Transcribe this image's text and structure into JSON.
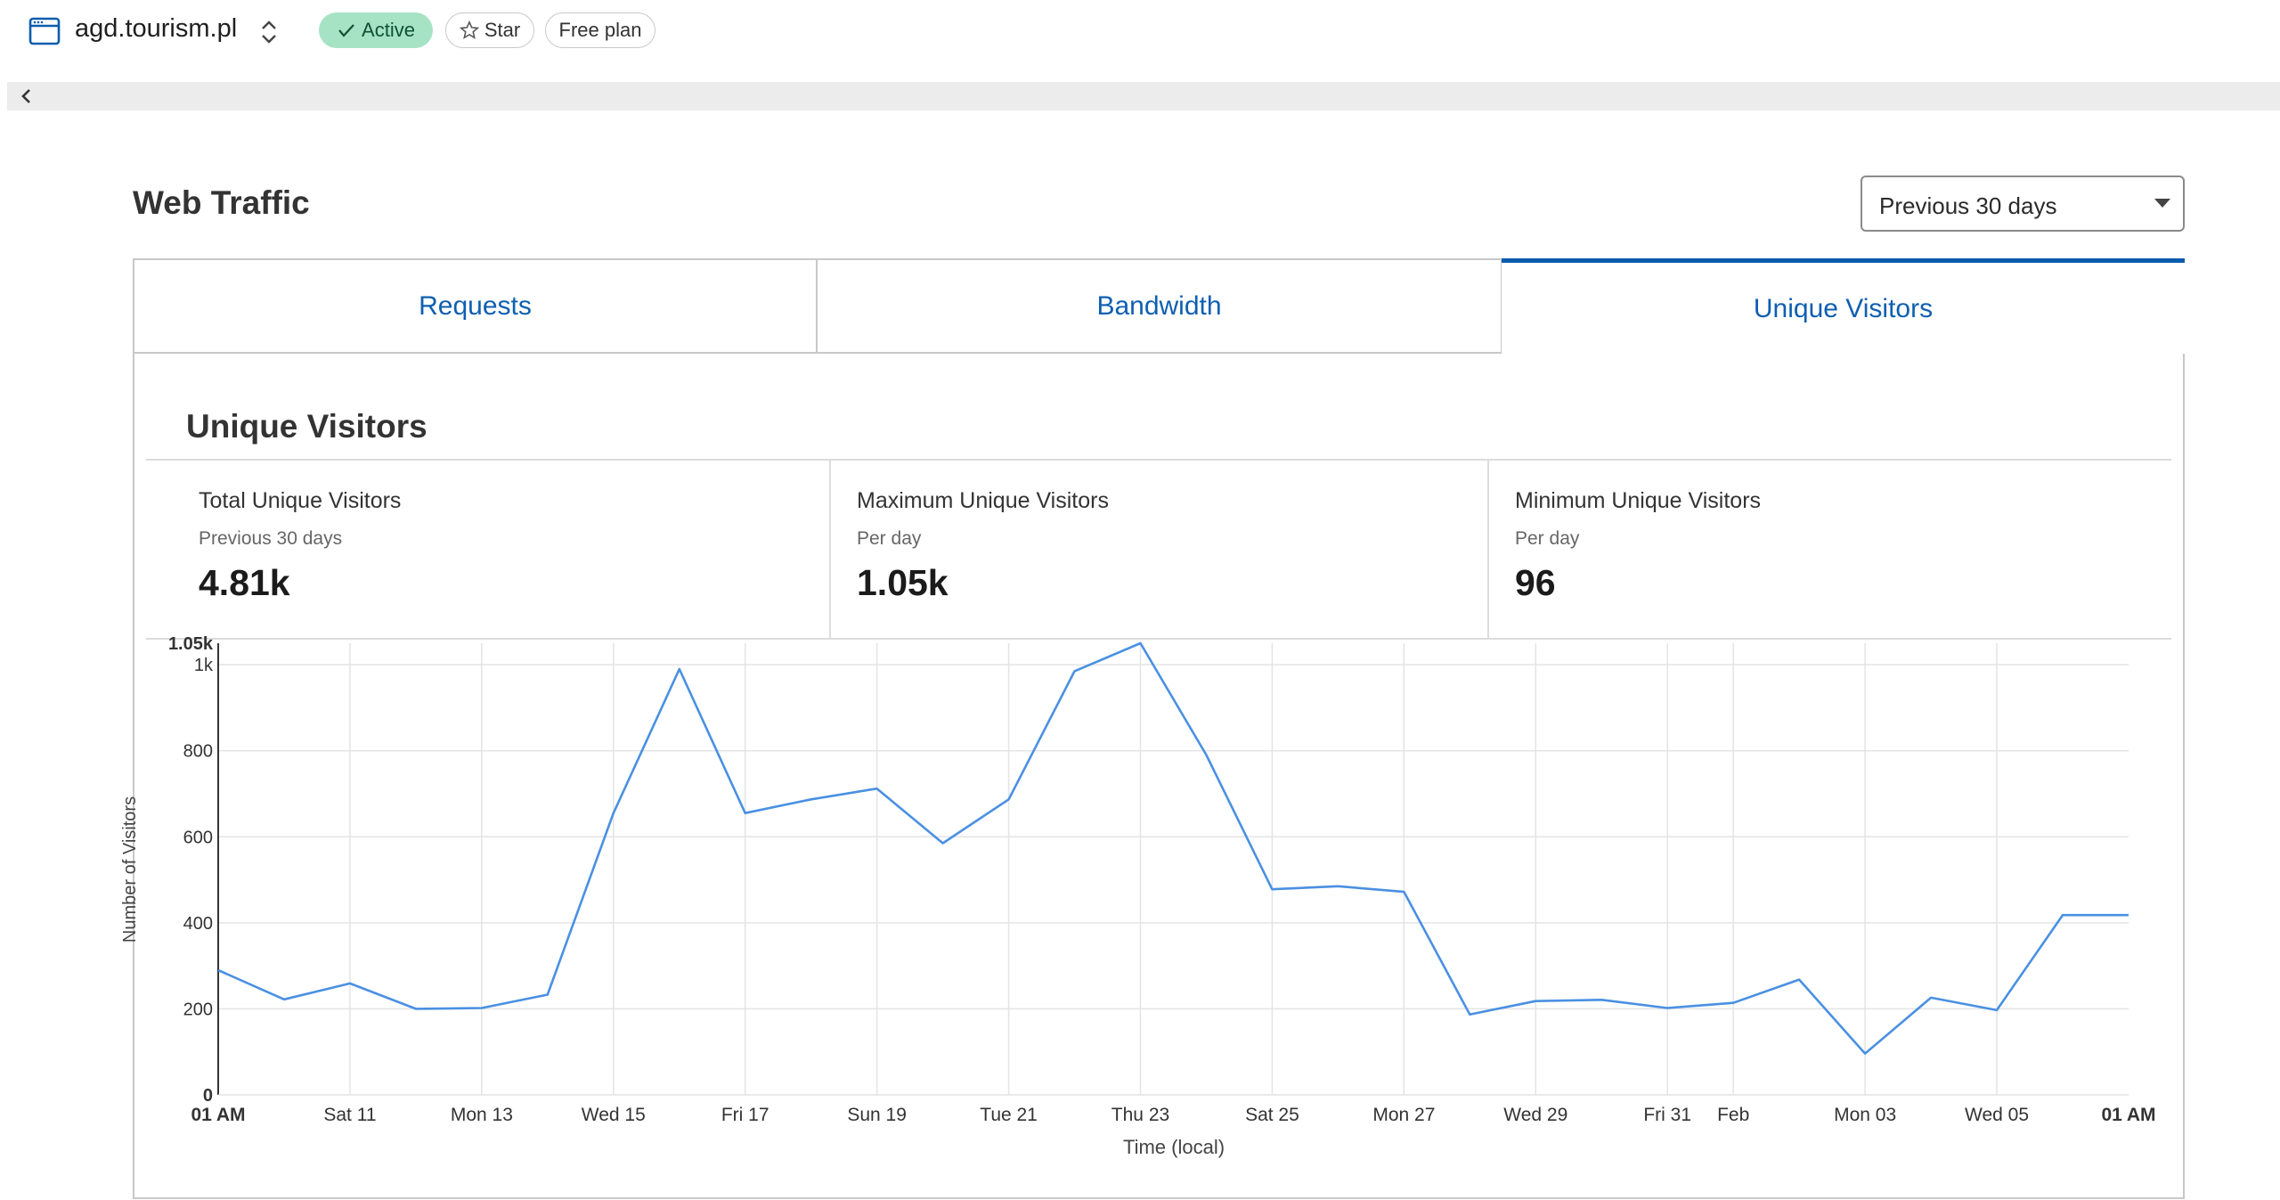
{
  "header": {
    "site_name": "agd.tourism.pl",
    "status_badge": "Active",
    "star_label": "Star",
    "plan_label": "Free plan",
    "site_icon": "browser-window-icon",
    "switch_icon": "chevron-up-down-icon",
    "collapse_icon": "chevron-left-icon"
  },
  "main": {
    "title": "Web Traffic",
    "range_select": {
      "selected": "Previous 30 days"
    },
    "tabs": [
      {
        "label": "Requests",
        "active": false
      },
      {
        "label": "Bandwidth",
        "active": false
      },
      {
        "label": "Unique Visitors",
        "active": true
      }
    ],
    "section_title": "Unique Visitors",
    "stats": [
      {
        "label": "Total Unique Visitors",
        "sub": "Previous 30 days",
        "value": "4.81k"
      },
      {
        "label": "Maximum Unique Visitors",
        "sub": "Per day",
        "value": "1.05k"
      },
      {
        "label": "Minimum Unique Visitors",
        "sub": "Per day",
        "value": "96"
      }
    ]
  },
  "colors": {
    "accent": "#0b5cad",
    "line": "#4a90e2",
    "badge_active_bg": "#a6e3c5"
  },
  "chart_data": {
    "type": "line",
    "xlabel": "Time (local)",
    "ylabel": "Number of Visitors",
    "ylim": [
      0,
      1050
    ],
    "yticks": [
      {
        "v": 0,
        "label": "0"
      },
      {
        "v": 200,
        "label": "200"
      },
      {
        "v": 400,
        "label": "400"
      },
      {
        "v": 600,
        "label": "600"
      },
      {
        "v": 800,
        "label": "800"
      },
      {
        "v": 1000,
        "label": "1k"
      },
      {
        "v": 1050,
        "label": "1.05k"
      }
    ],
    "xlim": [
      "2025-01-09",
      "2025-02-06"
    ],
    "xticks": [
      {
        "d": "2025-01-09",
        "label": "01 AM",
        "bold": true
      },
      {
        "d": "2025-01-11",
        "label": "Sat 11"
      },
      {
        "d": "2025-01-13",
        "label": "Mon 13"
      },
      {
        "d": "2025-01-15",
        "label": "Wed 15"
      },
      {
        "d": "2025-01-17",
        "label": "Fri 17"
      },
      {
        "d": "2025-01-19",
        "label": "Sun 19"
      },
      {
        "d": "2025-01-21",
        "label": "Tue 21"
      },
      {
        "d": "2025-01-23",
        "label": "Thu 23"
      },
      {
        "d": "2025-01-25",
        "label": "Sat 25"
      },
      {
        "d": "2025-01-27",
        "label": "Mon 27"
      },
      {
        "d": "2025-01-29",
        "label": "Wed 29"
      },
      {
        "d": "2025-01-31",
        "label": "Fri 31"
      },
      {
        "d": "2025-02-01",
        "label": "Feb"
      },
      {
        "d": "2025-02-03",
        "label": "Mon 03"
      },
      {
        "d": "2025-02-05",
        "label": "Wed 05"
      },
      {
        "d": "2025-02-06",
        "label": "01 AM",
        "bold": true
      }
    ],
    "grid": true,
    "series": [
      {
        "points": [
          {
            "x": "2025-01-09",
            "y": 290
          },
          {
            "x": "2025-01-10",
            "y": 222
          },
          {
            "x": "2025-01-11",
            "y": 259
          },
          {
            "x": "2025-01-12",
            "y": 200
          },
          {
            "x": "2025-01-13",
            "y": 202
          },
          {
            "x": "2025-01-14",
            "y": 233
          },
          {
            "x": "2025-01-15",
            "y": 655
          },
          {
            "x": "2025-01-16",
            "y": 990
          },
          {
            "x": "2025-01-17",
            "y": 655
          },
          {
            "x": "2025-01-18",
            "y": 687
          },
          {
            "x": "2025-01-19",
            "y": 712
          },
          {
            "x": "2025-01-20",
            "y": 585
          },
          {
            "x": "2025-01-21",
            "y": 687
          },
          {
            "x": "2025-01-22",
            "y": 985
          },
          {
            "x": "2025-01-23",
            "y": 1050
          },
          {
            "x": "2025-01-24",
            "y": 790
          },
          {
            "x": "2025-01-25",
            "y": 478
          },
          {
            "x": "2025-01-26",
            "y": 485
          },
          {
            "x": "2025-01-27",
            "y": 472
          },
          {
            "x": "2025-01-28",
            "y": 187
          },
          {
            "x": "2025-01-29",
            "y": 218
          },
          {
            "x": "2025-01-30",
            "y": 221
          },
          {
            "x": "2025-01-31",
            "y": 202
          },
          {
            "x": "2025-02-01",
            "y": 214
          },
          {
            "x": "2025-02-02",
            "y": 268
          },
          {
            "x": "2025-02-03",
            "y": 96
          },
          {
            "x": "2025-02-04",
            "y": 226
          },
          {
            "x": "2025-02-05",
            "y": 197
          },
          {
            "x": "2025-02-06",
            "y": 418
          },
          {
            "x": "2025-02-07",
            "y": 418
          }
        ]
      }
    ]
  }
}
